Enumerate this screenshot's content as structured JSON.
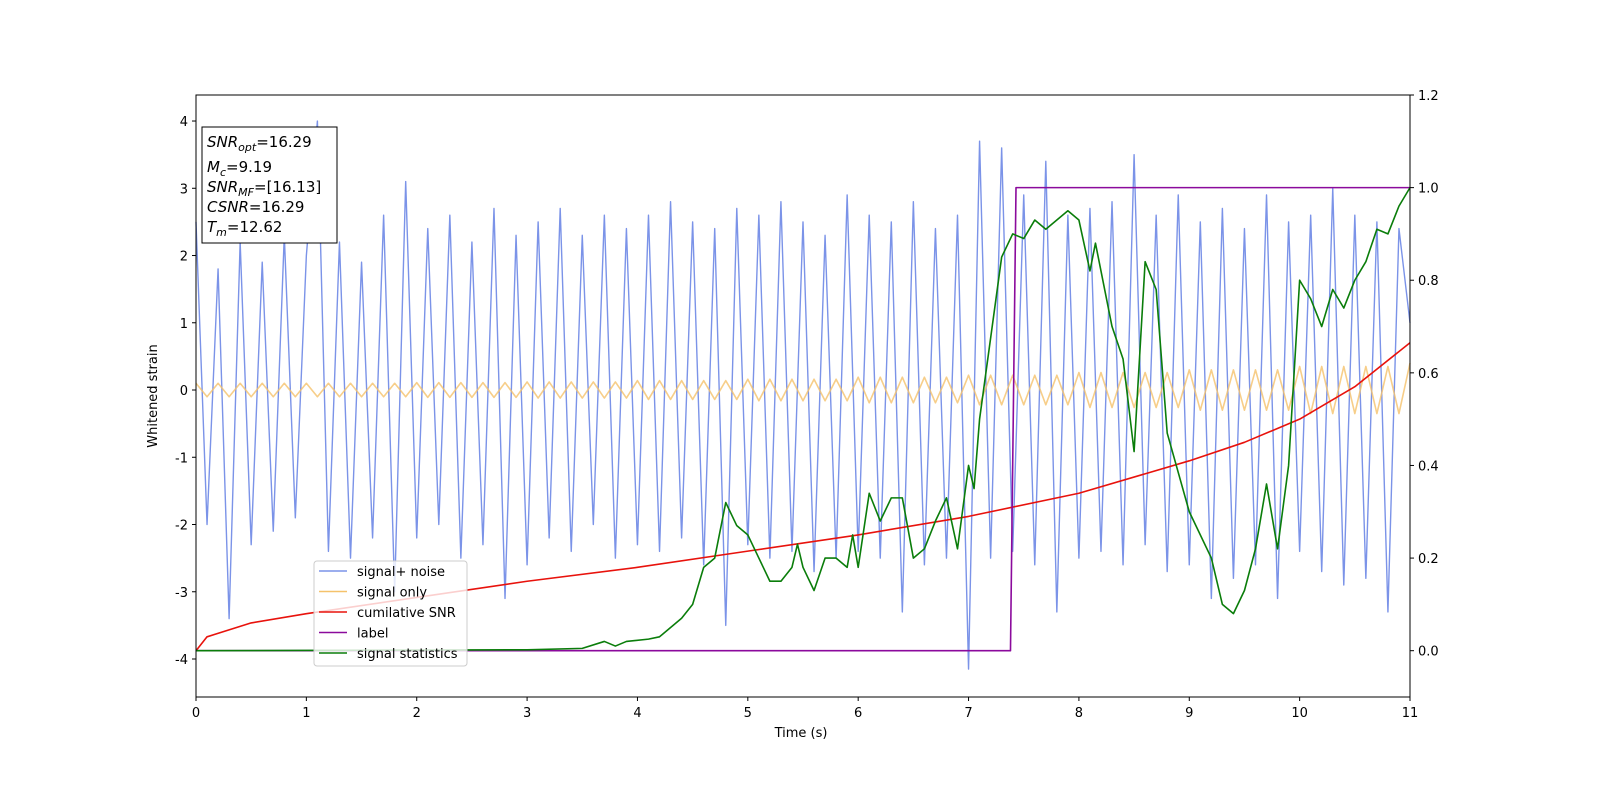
{
  "chart_data": {
    "type": "line",
    "xlabel": "Time (s)",
    "ylabel": "Whitened strain",
    "xlim": [
      0,
      11
    ],
    "xticks": [
      0,
      1,
      2,
      3,
      4,
      5,
      6,
      7,
      8,
      9,
      10,
      11
    ],
    "ylim": [
      -4.565,
      4.387
    ],
    "yticks": [
      -4,
      -3,
      -2,
      -1,
      0,
      1,
      2,
      3,
      4
    ],
    "y2lim": [
      -0.1,
      1.2
    ],
    "y2ticks": [
      {
        "value": 0,
        "label": "0.0"
      },
      {
        "value": 0.2,
        "label": "0.2"
      },
      {
        "value": 0.4,
        "label": "0.4"
      },
      {
        "value": 0.6,
        "label": "0.6"
      },
      {
        "value": 0.8,
        "label": "0.8"
      },
      {
        "value": 1,
        "label": "1.0"
      },
      {
        "value": 1.2,
        "label": "1.2"
      }
    ],
    "grid": false,
    "legend": "lower left",
    "annotation": [
      {
        "main": "SNR",
        "sub": "opt",
        "rest": "=16.29"
      },
      {
        "main": "M",
        "sub": "c",
        "rest": "=9.19"
      },
      {
        "main": "SNR",
        "sub": "MF",
        "rest": "=[16.13]"
      },
      {
        "main": "CSNR",
        "rest": "=16.29"
      },
      {
        "main": "T",
        "sub": "m",
        "rest": "=12.62"
      }
    ],
    "x": [
      0,
      0.1,
      0.2,
      0.3,
      0.4,
      0.5,
      0.6,
      0.7,
      0.8,
      0.9,
      1,
      1.1,
      1.2,
      1.3,
      1.4,
      1.5,
      1.6,
      1.7,
      1.8,
      1.9,
      2,
      2.1,
      2.2,
      2.3,
      2.4,
      2.5,
      2.6,
      2.7,
      2.8,
      2.9,
      3,
      3.1,
      3.2,
      3.3,
      3.4,
      3.5,
      3.6,
      3.7,
      3.8,
      3.9,
      4,
      4.1,
      4.2,
      4.3,
      4.4,
      4.5,
      4.6,
      4.7,
      4.8,
      4.9,
      5,
      5.1,
      5.2,
      5.3,
      5.4,
      5.5,
      5.6,
      5.7,
      5.8,
      5.9,
      6,
      6.1,
      6.2,
      6.3,
      6.4,
      6.5,
      6.6,
      6.7,
      6.8,
      6.9,
      7,
      7.1,
      7.2,
      7.3,
      7.4,
      7.5,
      7.6,
      7.7,
      7.8,
      7.9,
      8,
      8.1,
      8.2,
      8.3,
      8.4,
      8.5,
      8.6,
      8.7,
      8.8,
      8.9,
      9,
      9.1,
      9.2,
      9.3,
      9.4,
      9.5,
      9.6,
      9.7,
      9.8,
      9.9,
      10,
      10.1,
      10.2,
      10.3,
      10.4,
      10.5,
      10.6,
      10.7,
      10.8,
      10.9,
      11
    ],
    "series": [
      {
        "name": "signal+ noise",
        "color": "#7b93e8",
        "values": [
          2.5,
          -2.0,
          1.8,
          -3.4,
          2.2,
          -2.3,
          1.9,
          -2.1,
          2.3,
          -1.9,
          2.0,
          4.0,
          -2.4,
          2.2,
          -2.5,
          1.9,
          -2.2,
          2.6,
          -3.0,
          3.1,
          -2.2,
          2.4,
          -2.0,
          2.6,
          -2.5,
          2.2,
          -2.3,
          2.7,
          -3.1,
          2.3,
          -2.6,
          2.5,
          -2.2,
          2.7,
          -2.4,
          2.3,
          -2.0,
          2.6,
          -2.5,
          2.4,
          -2.3,
          2.6,
          -2.4,
          2.8,
          -2.2,
          2.5,
          -2.6,
          2.4,
          -3.5,
          2.7,
          -2.3,
          2.6,
          -2.5,
          2.8,
          -2.4,
          2.5,
          -2.7,
          2.3,
          -2.5,
          2.9,
          -2.4,
          2.6,
          -2.5,
          2.5,
          -3.3,
          2.8,
          -2.6,
          2.4,
          -2.5,
          2.6,
          -4.15,
          3.7,
          -2.5,
          3.6,
          -2.4,
          2.9,
          -2.6,
          3.4,
          -3.3,
          2.6,
          -2.5,
          2.7,
          -2.4,
          2.8,
          -2.6,
          3.5,
          -2.3,
          2.6,
          -2.7,
          2.9,
          -2.6,
          2.5,
          -3.1,
          2.7,
          -2.8,
          2.4,
          -2.6,
          2.9,
          -3.1,
          2.5,
          -2.4,
          2.6,
          -2.7,
          3.0,
          -2.9,
          2.6,
          -2.8,
          2.5,
          -3.3,
          2.4,
          1.0
        ]
      },
      {
        "name": "signal only",
        "color": "#f5c26b",
        "values": [
          0.1,
          -0.1,
          0.1,
          -0.1,
          0.1,
          -0.1,
          0.1,
          -0.1,
          0.1,
          -0.1,
          0.1,
          -0.1,
          0.1,
          -0.1,
          0.1,
          -0.1,
          0.1,
          -0.1,
          0.1,
          -0.1,
          0.11,
          -0.11,
          0.11,
          -0.11,
          0.11,
          -0.11,
          0.11,
          -0.11,
          0.11,
          -0.11,
          0.12,
          -0.12,
          0.12,
          -0.12,
          0.12,
          -0.12,
          0.12,
          -0.12,
          0.12,
          -0.12,
          0.14,
          -0.14,
          0.14,
          -0.14,
          0.14,
          -0.14,
          0.14,
          -0.14,
          0.14,
          -0.14,
          0.16,
          -0.16,
          0.16,
          -0.16,
          0.16,
          -0.16,
          0.16,
          -0.16,
          0.16,
          -0.16,
          0.19,
          -0.19,
          0.19,
          -0.19,
          0.19,
          -0.19,
          0.19,
          -0.19,
          0.19,
          -0.19,
          0.22,
          -0.22,
          0.22,
          -0.22,
          0.22,
          -0.22,
          0.22,
          -0.22,
          0.22,
          -0.22,
          0.26,
          -0.26,
          0.26,
          -0.26,
          0.26,
          -0.26,
          0.26,
          -0.26,
          0.26,
          -0.26,
          0.3,
          -0.3,
          0.3,
          -0.3,
          0.3,
          -0.3,
          0.3,
          -0.3,
          0.3,
          -0.3,
          0.35,
          -0.35,
          0.35,
          -0.35,
          0.35,
          -0.35,
          0.35,
          -0.35,
          0.35,
          -0.35,
          0.4
        ]
      },
      {
        "name": "cumilative SNR",
        "color": "#e8120c",
        "axis": "y2",
        "x": [
          0,
          0.1,
          0.5,
          1,
          2,
          3,
          4,
          5,
          6,
          7,
          8,
          9,
          9.5,
          10,
          10.5,
          11
        ],
        "values": [
          0.0,
          0.03,
          0.06,
          0.08,
          0.115,
          0.15,
          0.18,
          0.215,
          0.25,
          0.29,
          0.34,
          0.41,
          0.45,
          0.5,
          0.57,
          0.665
        ]
      },
      {
        "name": "label",
        "color": "#8b0a9c",
        "axis": "y2",
        "x": [
          0,
          7.38,
          7.43,
          11
        ],
        "values": [
          0,
          0,
          1,
          1
        ]
      },
      {
        "name": "signal statistics",
        "color": "#0a7d0a",
        "axis": "y2",
        "x": [
          0,
          3,
          3.5,
          3.7,
          3.8,
          3.9,
          4.1,
          4.2,
          4.4,
          4.5,
          4.6,
          4.7,
          4.8,
          4.9,
          5.0,
          5.1,
          5.2,
          5.3,
          5.4,
          5.45,
          5.5,
          5.6,
          5.7,
          5.8,
          5.9,
          5.95,
          6.0,
          6.1,
          6.2,
          6.3,
          6.4,
          6.5,
          6.6,
          6.7,
          6.8,
          6.9,
          7.0,
          7.05,
          7.1,
          7.3,
          7.4,
          7.5,
          7.6,
          7.7,
          7.9,
          8.0,
          8.1,
          8.15,
          8.3,
          8.4,
          8.5,
          8.6,
          8.7,
          8.8,
          9.0,
          9.2,
          9.3,
          9.4,
          9.5,
          9.6,
          9.7,
          9.8,
          9.9,
          10.0,
          10.1,
          10.2,
          10.3,
          10.4,
          10.5,
          10.6,
          10.7,
          10.8,
          10.9,
          11
        ],
        "values": [
          0,
          0.002,
          0.005,
          0.02,
          0.01,
          0.02,
          0.025,
          0.03,
          0.07,
          0.1,
          0.18,
          0.2,
          0.32,
          0.27,
          0.25,
          0.2,
          0.15,
          0.15,
          0.18,
          0.23,
          0.18,
          0.13,
          0.2,
          0.2,
          0.18,
          0.25,
          0.18,
          0.34,
          0.28,
          0.33,
          0.33,
          0.2,
          0.22,
          0.28,
          0.33,
          0.22,
          0.4,
          0.35,
          0.5,
          0.85,
          0.9,
          0.89,
          0.93,
          0.91,
          0.95,
          0.93,
          0.82,
          0.88,
          0.7,
          0.63,
          0.43,
          0.84,
          0.78,
          0.47,
          0.3,
          0.2,
          0.1,
          0.08,
          0.13,
          0.22,
          0.36,
          0.22,
          0.4,
          0.8,
          0.76,
          0.7,
          0.78,
          0.74,
          0.8,
          0.84,
          0.91,
          0.9,
          0.96,
          1.0
        ]
      }
    ]
  }
}
